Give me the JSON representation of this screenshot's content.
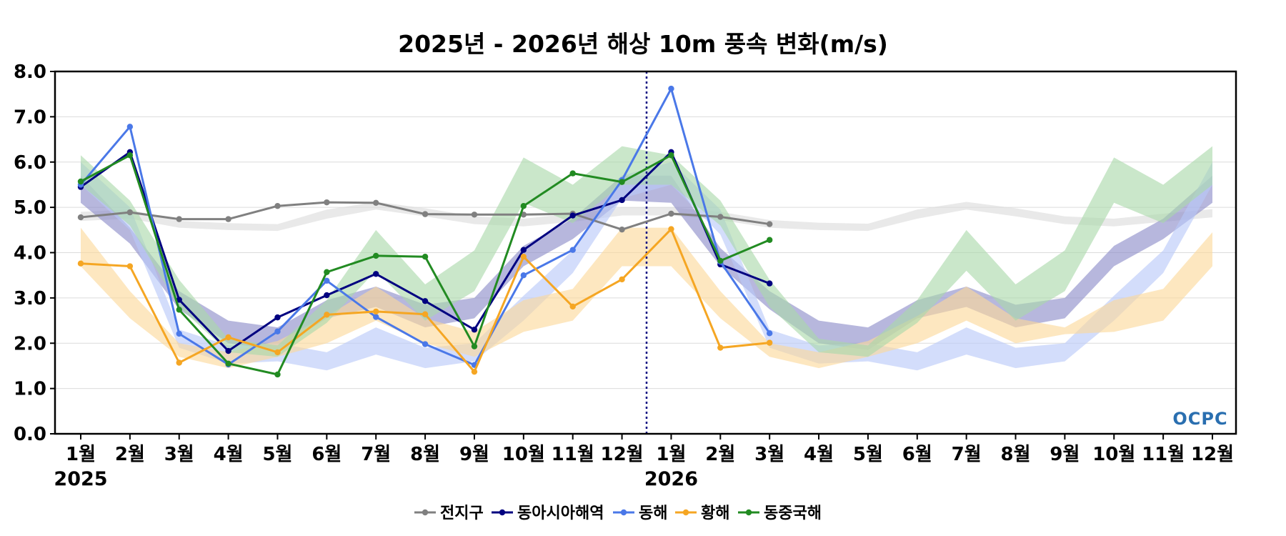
{
  "chart_data": {
    "type": "line",
    "title": "2025년 - 2026년 해상 10m 풍속 변화(m/s)",
    "xlabel": "",
    "ylabel": "",
    "ylim": [
      0,
      8
    ],
    "yticks": [
      "0.0",
      "1.0",
      "2.0",
      "3.0",
      "4.0",
      "5.0",
      "6.0",
      "7.0",
      "8.0"
    ],
    "categories": [
      "1월",
      "2월",
      "3월",
      "4월",
      "5월",
      "6월",
      "7월",
      "8월",
      "9월",
      "10월",
      "11월",
      "12월",
      "1월",
      "2월",
      "3월",
      "4월",
      "5월",
      "6월",
      "7월",
      "8월",
      "9월",
      "10월",
      "11월",
      "12월"
    ],
    "years": [
      {
        "label": "2025",
        "index": 0
      },
      {
        "label": "2026",
        "index": 12
      }
    ],
    "divider_after_index": 11,
    "grid": true,
    "legend_position": "bottom-center",
    "logo": "OCPC",
    "series": [
      {
        "name": "전지구",
        "color": "#808080",
        "band_color": "#dcdcdc",
        "values": [
          4.78,
          4.89,
          4.74,
          4.74,
          5.03,
          5.11,
          5.1,
          4.85,
          4.84,
          4.84,
          4.86,
          4.51,
          4.86,
          4.79,
          4.63,
          null,
          null,
          null,
          null,
          null,
          null,
          null,
          null,
          null
        ],
        "band_low": [
          4.7,
          4.75,
          4.55,
          4.5,
          4.48,
          4.75,
          4.95,
          4.8,
          4.63,
          4.58,
          4.68,
          4.82,
          4.82,
          4.72,
          4.55,
          4.5,
          4.48,
          4.75,
          4.95,
          4.8,
          4.63,
          4.58,
          4.68,
          4.78
        ],
        "band_high": [
          4.9,
          4.95,
          4.7,
          4.65,
          4.63,
          4.95,
          5.12,
          4.98,
          4.8,
          4.75,
          4.86,
          5.0,
          5.0,
          4.9,
          4.72,
          4.66,
          4.64,
          4.95,
          5.12,
          4.98,
          4.8,
          4.75,
          4.86,
          4.96
        ]
      },
      {
        "name": "동아시아해역",
        "color": "#000080",
        "band_color": "#8a8ac8",
        "values": [
          5.45,
          6.22,
          2.96,
          1.83,
          2.57,
          3.06,
          3.53,
          2.93,
          2.3,
          4.06,
          4.82,
          5.16,
          6.22,
          3.74,
          3.32,
          null,
          null,
          null,
          null,
          null,
          null,
          null,
          null,
          null
        ],
        "band_low": [
          5.1,
          4.2,
          2.75,
          2.0,
          1.85,
          2.55,
          2.8,
          2.35,
          2.55,
          3.7,
          4.3,
          5.15,
          5.1,
          3.7,
          2.75,
          2.0,
          1.85,
          2.55,
          2.8,
          2.35,
          2.55,
          3.7,
          4.3,
          5.1
        ],
        "band_high": [
          5.7,
          4.55,
          3.15,
          2.5,
          2.35,
          2.95,
          3.25,
          2.85,
          3.0,
          4.15,
          4.75,
          5.7,
          5.7,
          4.1,
          3.15,
          2.5,
          2.35,
          2.95,
          3.25,
          2.85,
          3.0,
          4.15,
          4.75,
          5.7
        ]
      },
      {
        "name": "동해",
        "color": "#4a78e8",
        "band_color": "#b8c8f8",
        "values": [
          5.5,
          6.78,
          2.21,
          1.53,
          2.26,
          3.38,
          2.58,
          1.98,
          1.52,
          3.5,
          4.06,
          5.6,
          7.62,
          3.8,
          2.22,
          null,
          null,
          null,
          null,
          null,
          null,
          null,
          null,
          null
        ],
        "band_low": [
          5.5,
          4.5,
          1.9,
          1.55,
          1.6,
          1.4,
          1.75,
          1.45,
          1.6,
          2.5,
          3.55,
          5.2,
          5.5,
          4.4,
          1.9,
          1.55,
          1.6,
          1.4,
          1.75,
          1.45,
          1.6,
          2.5,
          3.55,
          5.5
        ],
        "band_high": [
          6.0,
          5.0,
          2.3,
          1.95,
          2.0,
          1.8,
          2.35,
          1.9,
          2.0,
          3.05,
          4.05,
          5.7,
          6.0,
          4.95,
          2.3,
          1.95,
          2.0,
          1.8,
          2.35,
          1.9,
          2.0,
          3.05,
          4.05,
          6.0
        ]
      },
      {
        "name": "황해",
        "color": "#f5a623",
        "band_color": "#fbd89a",
        "values": [
          3.76,
          3.7,
          1.57,
          2.13,
          1.8,
          2.63,
          2.7,
          2.64,
          1.37,
          3.91,
          2.81,
          3.41,
          4.52,
          1.9,
          2.01,
          null,
          null,
          null,
          null,
          null,
          null,
          null,
          null,
          null
        ],
        "band_low": [
          3.7,
          2.55,
          1.7,
          1.45,
          1.7,
          2.0,
          2.5,
          2.0,
          1.7,
          2.25,
          2.5,
          3.7,
          3.7,
          2.55,
          1.7,
          1.45,
          1.7,
          2.0,
          2.5,
          2.0,
          2.2,
          2.25,
          2.5,
          3.7
        ],
        "band_high": [
          4.55,
          3.15,
          2.0,
          1.8,
          2.05,
          2.6,
          3.25,
          2.55,
          2.25,
          2.95,
          3.2,
          4.55,
          4.55,
          3.15,
          2.0,
          1.8,
          2.05,
          2.6,
          3.25,
          2.55,
          2.35,
          2.95,
          3.2,
          4.45
        ]
      },
      {
        "name": "동중국해",
        "color": "#228b22",
        "band_color": "#aad8aa",
        "values": [
          5.57,
          6.15,
          2.74,
          1.55,
          1.31,
          3.57,
          3.93,
          3.91,
          1.93,
          5.03,
          5.75,
          5.56,
          6.15,
          3.82,
          4.28,
          null,
          null,
          null,
          null,
          null,
          null,
          null,
          null,
          null
        ],
        "band_low": [
          5.5,
          4.6,
          2.8,
          1.8,
          1.7,
          2.45,
          3.6,
          2.5,
          3.15,
          5.1,
          4.65,
          5.5,
          5.5,
          4.6,
          2.8,
          1.8,
          1.7,
          2.45,
          3.6,
          2.5,
          3.15,
          5.1,
          4.65,
          5.5
        ],
        "band_high": [
          6.15,
          5.15,
          3.4,
          2.1,
          1.95,
          2.95,
          4.5,
          3.3,
          4.05,
          6.1,
          5.5,
          6.35,
          6.15,
          5.15,
          3.4,
          2.1,
          1.95,
          2.95,
          4.5,
          3.3,
          4.05,
          6.1,
          5.5,
          6.35
        ]
      }
    ]
  }
}
